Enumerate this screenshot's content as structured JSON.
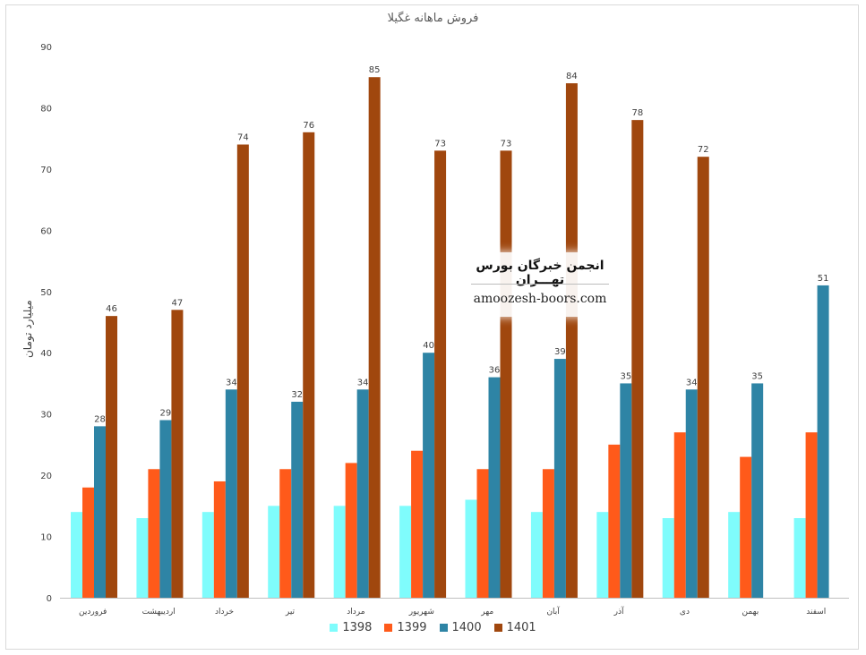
{
  "chart_data": {
    "type": "bar",
    "title": "فروش ماهانه غگیلا",
    "ylabel": "میلیارد تومان",
    "xlabel": "",
    "ylim": [
      0,
      90
    ],
    "yticks": [
      "0",
      "10",
      "20",
      "30",
      "40",
      "50",
      "60",
      "70",
      "80",
      "90"
    ],
    "grid": false,
    "legend_position": "bottom",
    "categories": [
      "فروردین",
      "اردیبهشت",
      "خرداد",
      "تیر",
      "مرداد",
      "شهریور",
      "مهر",
      "آبان",
      "آذر",
      "دی",
      "بهمن",
      "اسفند"
    ],
    "series": [
      {
        "name": "1398",
        "color": "#7ffcfc",
        "values": [
          14,
          13,
          14,
          15,
          15,
          15,
          16,
          14,
          14,
          13,
          14,
          13
        ],
        "labels": false
      },
      {
        "name": "1399",
        "color": "#ff5a1a",
        "values": [
          18,
          21,
          19,
          21,
          22,
          24,
          21,
          21,
          25,
          27,
          23,
          27
        ],
        "labels": false
      },
      {
        "name": "1400",
        "color": "#2e84a5",
        "values": [
          28,
          29,
          34,
          32,
          34,
          40,
          36,
          39,
          35,
          34,
          35,
          51
        ],
        "labels": true
      },
      {
        "name": "1401",
        "color": "#a0470e",
        "values": [
          46,
          47,
          74,
          76,
          85,
          73,
          73,
          84,
          78,
          72,
          null,
          null
        ],
        "labels": true
      }
    ]
  },
  "watermark": {
    "title": "انجمن خبرگان بورس تهـــران",
    "url": "amoozesh-boors.com"
  }
}
